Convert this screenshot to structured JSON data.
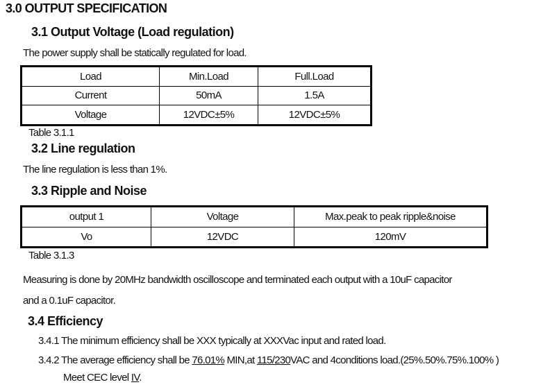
{
  "section_title": "3.0 OUTPUT SPECIFICATION",
  "s31": {
    "heading": "3.1 Output Voltage (Load regulation)",
    "text": "The power supply shall be statically regulated for load.",
    "table": {
      "headers": [
        "Load",
        "Min.Load",
        "Full.Load"
      ],
      "rows": [
        [
          "Current",
          "50mA",
          "1.5A"
        ],
        [
          "Voltage",
          "12VDC±5%",
          "12VDC±5%"
        ]
      ]
    },
    "caption": "Table 3.1.1"
  },
  "s32": {
    "heading": "3.2  Line regulation",
    "text": "The line regulation is less than 1%."
  },
  "s33": {
    "heading": "3.3  Ripple and Noise",
    "table": {
      "headers": [
        "output 1",
        "Voltage",
        "Max.peak to peak ripple&noise"
      ],
      "rows": [
        [
          "Vo",
          "12VDC",
          "120mV"
        ]
      ]
    },
    "caption": "Table 3.1.3",
    "text1": "Measuring is done by 20MHz bandwidth oscilloscope and terminated each output with a 10uF capacitor",
    "text2": "and a 0.1uF capacitor."
  },
  "s34": {
    "heading": "3.4 Efficiency",
    "item1": "3.4.1 The minimum efficiency shall be XXX typically at XXXVac input and rated load.",
    "item2": {
      "a": "3.4.2 The average efficiency shall be ",
      "u1": "76.01%",
      "b": " MIN,at ",
      "u2": "115/230",
      "c": "VAC and 4conditions load.(25%.50%.75%.100% )"
    },
    "item3": {
      "a": "Meet CEC level ",
      "u": "IV",
      "b": "."
    }
  }
}
